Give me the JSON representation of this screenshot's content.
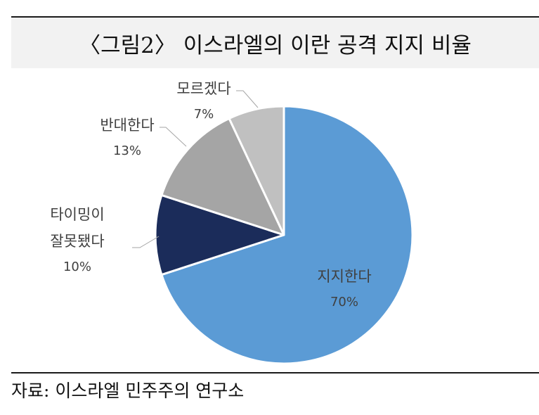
{
  "title": "〈그림2〉 이스라엘의 이란 공격 지지 비율",
  "source": "자료: 이스라엘 민주주의 연구소",
  "chart_data": {
    "type": "pie",
    "start_angle_deg": 0,
    "direction": "clockwise",
    "slices": [
      {
        "label": "지지한다",
        "label_lines": [
          "지지한다"
        ],
        "value": 70,
        "value_label": "70%",
        "color": "#5b9bd5"
      },
      {
        "label": "타이밍이 잘못됐다",
        "label_lines": [
          "타이밍이",
          "잘못됐다"
        ],
        "value": 10,
        "value_label": "10%",
        "color": "#1b2c5a"
      },
      {
        "label": "반대한다",
        "label_lines": [
          "반대한다"
        ],
        "value": 13,
        "value_label": "13%",
        "color": "#a5a5a5"
      },
      {
        "label": "모르겠다",
        "label_lines": [
          "모르겠다"
        ],
        "value": 7,
        "value_label": "7%",
        "color": "#c0c0c0"
      }
    ]
  }
}
